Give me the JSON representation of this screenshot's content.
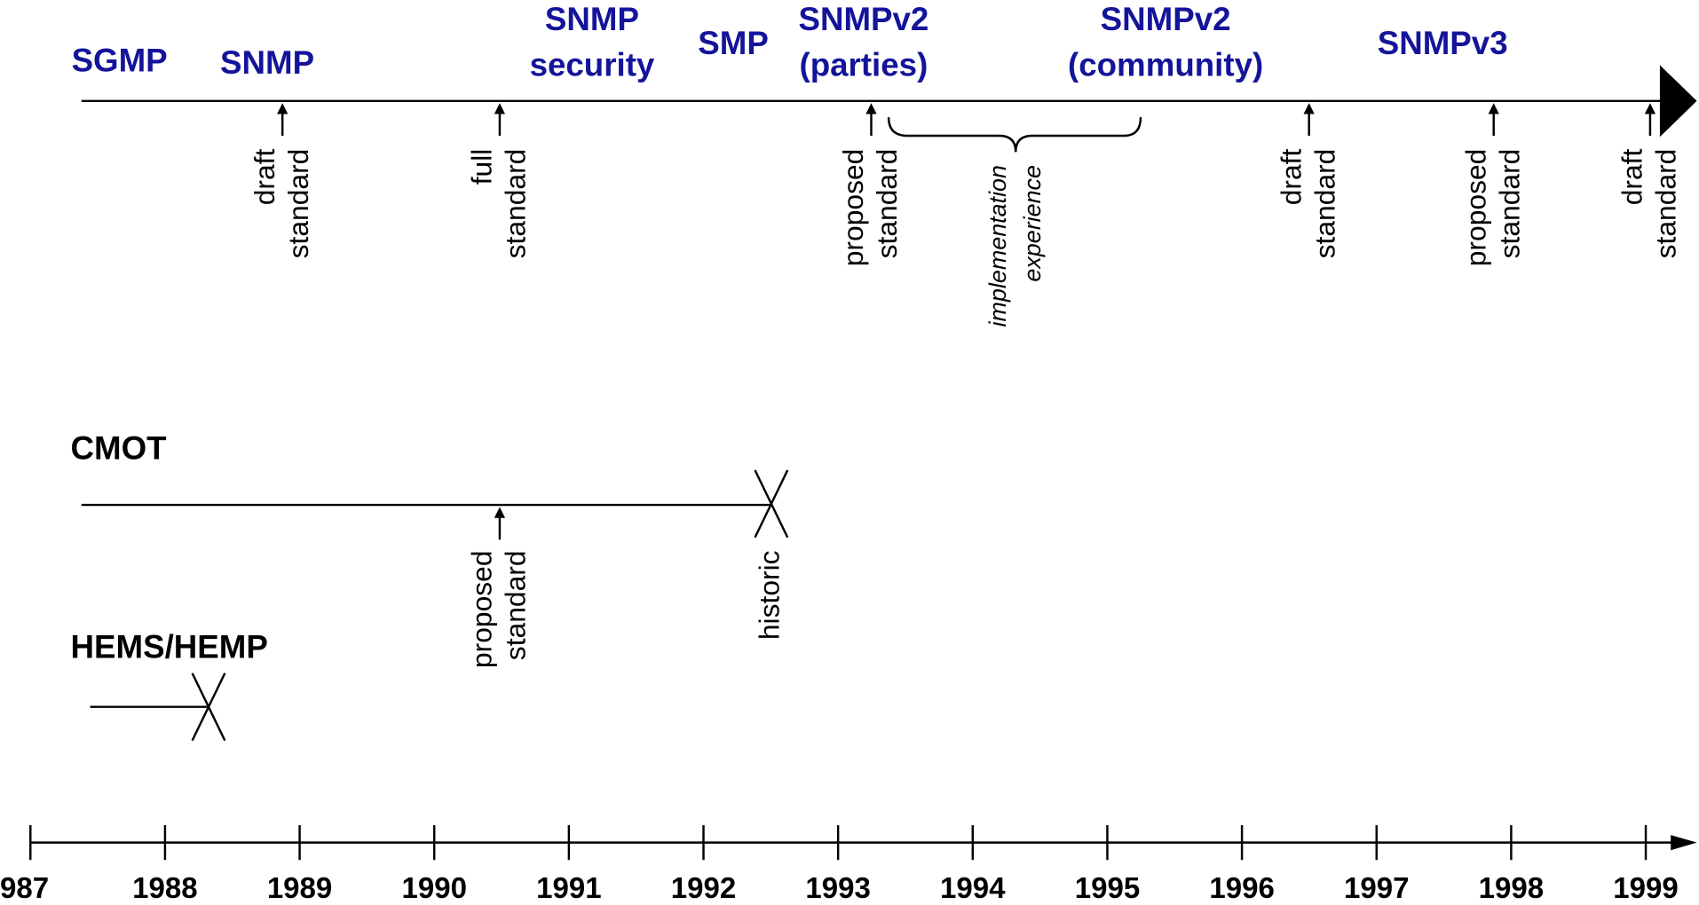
{
  "snmp_track": {
    "protocols": [
      {
        "lines": [
          "SGMP"
        ]
      },
      {
        "lines": [
          "SNMP"
        ]
      },
      {
        "lines": [
          "SNMP",
          "security"
        ]
      },
      {
        "lines": [
          "SMP"
        ]
      },
      {
        "lines": [
          "SNMPv2",
          "(parties)"
        ]
      },
      {
        "lines": [
          "SNMPv2",
          "(community)"
        ]
      },
      {
        "lines": [
          "SNMPv3"
        ]
      }
    ],
    "milestones": [
      {
        "lines": [
          "draft",
          "standard"
        ]
      },
      {
        "lines": [
          "full",
          "standard"
        ]
      },
      {
        "lines": [
          "proposed",
          "standard"
        ]
      },
      {
        "lines": [
          "draft",
          "standard"
        ]
      },
      {
        "lines": [
          "proposed",
          "standard"
        ]
      },
      {
        "lines": [
          "draft",
          "standard"
        ]
      }
    ],
    "note": {
      "lines": [
        "implementation",
        "experience"
      ]
    }
  },
  "cmot_track": {
    "label": "CMOT",
    "milestones": [
      {
        "lines": [
          "proposed",
          "standard"
        ]
      },
      {
        "lines": [
          "historic"
        ]
      }
    ]
  },
  "hems_track": {
    "label": "HEMS/HEMP"
  },
  "timeline": {
    "years": [
      "987",
      "1988",
      "1989",
      "1990",
      "1991",
      "1992",
      "1993",
      "1994",
      "1995",
      "1996",
      "1997",
      "1998",
      "1999"
    ]
  }
}
